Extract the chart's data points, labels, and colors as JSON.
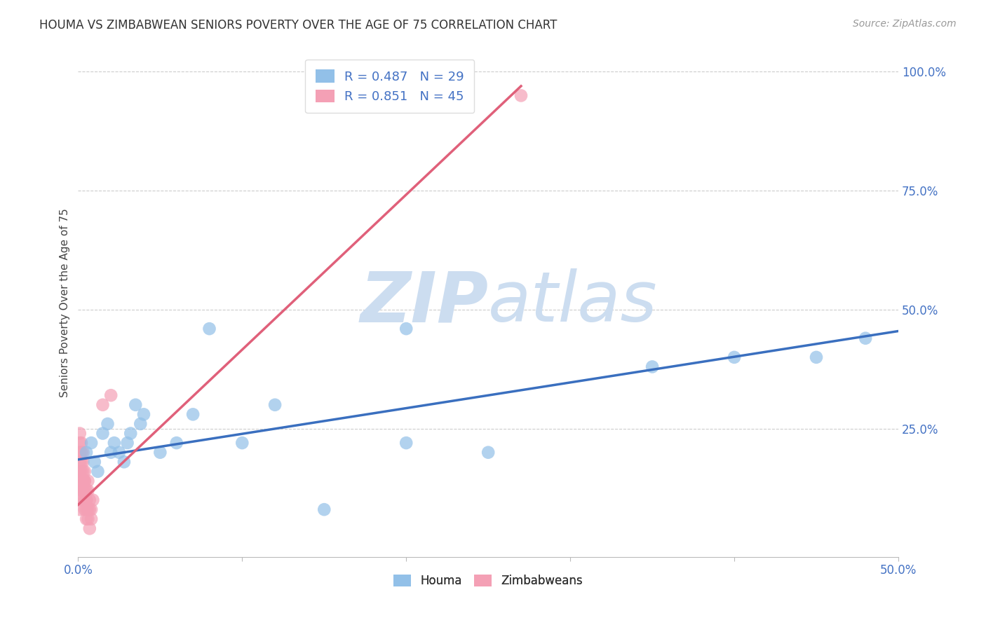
{
  "title": "HOUMA VS ZIMBABWEAN SENIORS POVERTY OVER THE AGE OF 75 CORRELATION CHART",
  "source_text": "Source: ZipAtlas.com",
  "ylabel": "Seniors Poverty Over the Age of 75",
  "xlim": [
    0.0,
    0.5
  ],
  "ylim": [
    -0.02,
    1.05
  ],
  "houma_R": 0.487,
  "houma_N": 29,
  "zimbabwe_R": 0.851,
  "zimbabwe_N": 45,
  "houma_color": "#92c0e8",
  "zimbabwe_color": "#f4a0b5",
  "houma_line_color": "#3a6fbf",
  "zimbabwe_line_color": "#e0607a",
  "watermark_color": "#ccddf0",
  "houma_x": [
    0.005,
    0.008,
    0.01,
    0.012,
    0.015,
    0.018,
    0.02,
    0.022,
    0.025,
    0.028,
    0.03,
    0.032,
    0.035,
    0.038,
    0.04,
    0.05,
    0.06,
    0.07,
    0.08,
    0.1,
    0.12,
    0.15,
    0.2,
    0.25,
    0.35,
    0.4,
    0.45,
    0.48,
    0.2
  ],
  "houma_y": [
    0.2,
    0.22,
    0.18,
    0.16,
    0.24,
    0.26,
    0.2,
    0.22,
    0.2,
    0.18,
    0.22,
    0.24,
    0.3,
    0.26,
    0.28,
    0.2,
    0.22,
    0.28,
    0.46,
    0.22,
    0.3,
    0.08,
    0.22,
    0.2,
    0.38,
    0.4,
    0.4,
    0.44,
    0.46
  ],
  "zimbabwe_x": [
    0.001,
    0.002,
    0.003,
    0.004,
    0.005,
    0.006,
    0.007,
    0.008,
    0.009,
    0.001,
    0.002,
    0.003,
    0.004,
    0.005,
    0.006,
    0.007,
    0.008,
    0.001,
    0.002,
    0.003,
    0.004,
    0.005,
    0.006,
    0.007,
    0.001,
    0.002,
    0.003,
    0.004,
    0.005,
    0.006,
    0.001,
    0.002,
    0.003,
    0.004,
    0.005,
    0.001,
    0.002,
    0.003,
    0.004,
    0.001,
    0.002,
    0.003,
    0.015,
    0.02,
    0.27
  ],
  "zimbabwe_y": [
    0.08,
    0.1,
    0.12,
    0.14,
    0.1,
    0.12,
    0.08,
    0.06,
    0.1,
    0.14,
    0.12,
    0.1,
    0.08,
    0.06,
    0.14,
    0.1,
    0.08,
    0.16,
    0.14,
    0.12,
    0.1,
    0.08,
    0.06,
    0.04,
    0.18,
    0.16,
    0.14,
    0.12,
    0.1,
    0.08,
    0.2,
    0.18,
    0.16,
    0.14,
    0.12,
    0.22,
    0.2,
    0.18,
    0.16,
    0.24,
    0.22,
    0.2,
    0.3,
    0.32,
    0.95
  ],
  "houma_line_x": [
    0.0,
    0.5
  ],
  "houma_line_y": [
    0.185,
    0.455
  ],
  "zimbabwe_line_x": [
    0.0,
    0.27
  ],
  "zimbabwe_line_y": [
    0.09,
    0.97
  ],
  "ytick_vals": [
    0.25,
    0.5,
    0.75,
    1.0
  ],
  "ytick_labels": [
    "25.0%",
    "50.0%",
    "75.0%",
    "100.0%"
  ],
  "xtick_vals": [
    0.0,
    0.1,
    0.2,
    0.3,
    0.4,
    0.5
  ],
  "xtick_labels": [
    "0.0%",
    "",
    "",
    "",
    "",
    "50.0%"
  ]
}
